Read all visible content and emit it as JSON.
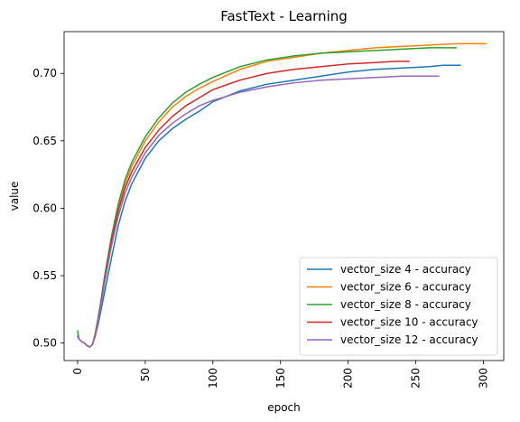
{
  "chart_data": {
    "type": "line",
    "title": "FastText - Learning",
    "xlabel": "epoch",
    "ylabel": "value",
    "xlim": [
      -10,
      315
    ],
    "ylim": [
      0.487,
      0.731
    ],
    "xticks": [
      0,
      50,
      100,
      150,
      200,
      250,
      300
    ],
    "yticks": [
      0.5,
      0.55,
      0.6,
      0.65,
      0.7
    ],
    "ytick_labels": [
      "0.50",
      "0.55",
      "0.60",
      "0.65",
      "0.70"
    ],
    "x_tick_rotation": 90,
    "grid": false,
    "legend_position": "lower-right",
    "series": [
      {
        "name": "vector_size 4 - accuracy",
        "color": "#1f77b4",
        "x": [
          0,
          1,
          3,
          5,
          7,
          9,
          11,
          13,
          15,
          17,
          20,
          25,
          30,
          35,
          40,
          50,
          60,
          70,
          80,
          90,
          100,
          120,
          140,
          160,
          180,
          200,
          220,
          240,
          260,
          270,
          283
        ],
        "y": [
          0.505,
          0.503,
          0.501,
          0.5,
          0.498,
          0.497,
          0.499,
          0.505,
          0.513,
          0.523,
          0.538,
          0.563,
          0.587,
          0.605,
          0.618,
          0.637,
          0.65,
          0.659,
          0.666,
          0.672,
          0.679,
          0.687,
          0.692,
          0.695,
          0.698,
          0.701,
          0.703,
          0.704,
          0.705,
          0.706,
          0.706
        ]
      },
      {
        "name": "vector_size 6 - accuracy",
        "color": "#ff7f0e",
        "x": [
          0,
          1,
          3,
          5,
          7,
          9,
          11,
          13,
          15,
          17,
          20,
          25,
          30,
          35,
          40,
          50,
          60,
          70,
          80,
          90,
          100,
          120,
          140,
          160,
          180,
          200,
          220,
          240,
          260,
          280,
          302
        ],
        "y": [
          0.505,
          0.503,
          0.501,
          0.5,
          0.498,
          0.497,
          0.499,
          0.506,
          0.516,
          0.528,
          0.548,
          0.577,
          0.6,
          0.618,
          0.631,
          0.65,
          0.664,
          0.675,
          0.683,
          0.689,
          0.694,
          0.703,
          0.709,
          0.712,
          0.715,
          0.717,
          0.719,
          0.72,
          0.721,
          0.722,
          0.722
        ]
      },
      {
        "name": "vector_size 8 - accuracy",
        "color": "#2ca02c",
        "x": [
          0,
          1,
          3,
          5,
          7,
          9,
          11,
          13,
          15,
          17,
          20,
          25,
          30,
          35,
          40,
          50,
          60,
          70,
          80,
          90,
          100,
          120,
          140,
          160,
          180,
          200,
          220,
          240,
          260,
          280
        ],
        "y": [
          0.509,
          0.503,
          0.501,
          0.5,
          0.498,
          0.497,
          0.499,
          0.507,
          0.518,
          0.53,
          0.55,
          0.579,
          0.603,
          0.621,
          0.634,
          0.653,
          0.667,
          0.678,
          0.686,
          0.692,
          0.697,
          0.705,
          0.71,
          0.713,
          0.715,
          0.716,
          0.717,
          0.718,
          0.719,
          0.719
        ]
      },
      {
        "name": "vector_size 10 - accuracy",
        "color": "#d62728",
        "x": [
          0,
          1,
          3,
          5,
          7,
          9,
          11,
          13,
          15,
          17,
          20,
          25,
          30,
          35,
          40,
          50,
          60,
          70,
          80,
          90,
          100,
          120,
          140,
          160,
          180,
          200,
          220,
          235,
          245
        ],
        "y": [
          0.505,
          0.503,
          0.501,
          0.5,
          0.498,
          0.497,
          0.499,
          0.506,
          0.516,
          0.528,
          0.547,
          0.576,
          0.598,
          0.615,
          0.627,
          0.645,
          0.658,
          0.668,
          0.676,
          0.682,
          0.688,
          0.695,
          0.7,
          0.703,
          0.705,
          0.707,
          0.708,
          0.709,
          0.709
        ]
      },
      {
        "name": "vector_size 12 - accuracy",
        "color": "#9467bd",
        "x": [
          0,
          1,
          3,
          5,
          7,
          9,
          11,
          13,
          15,
          17,
          20,
          25,
          30,
          35,
          40,
          50,
          60,
          70,
          80,
          90,
          100,
          120,
          140,
          160,
          180,
          200,
          220,
          240,
          255,
          267
        ],
        "y": [
          0.505,
          0.503,
          0.501,
          0.5,
          0.498,
          0.497,
          0.499,
          0.505,
          0.515,
          0.527,
          0.545,
          0.572,
          0.594,
          0.611,
          0.623,
          0.641,
          0.654,
          0.663,
          0.67,
          0.676,
          0.68,
          0.686,
          0.69,
          0.693,
          0.695,
          0.696,
          0.697,
          0.698,
          0.698,
          0.698
        ]
      }
    ]
  }
}
